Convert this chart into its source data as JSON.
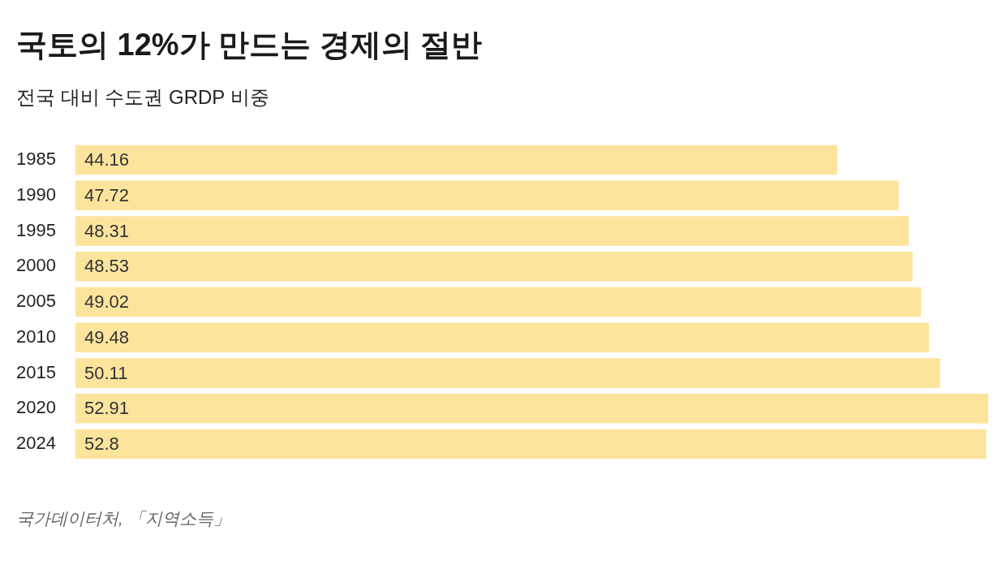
{
  "chart_data": {
    "type": "bar",
    "orientation": "horizontal",
    "title": "국토의 12%가 만드는 경제의 절반",
    "subtitle": "전국 대비 수도권 GRDP 비중",
    "categories": [
      "1985",
      "1990",
      "1995",
      "2000",
      "2005",
      "2010",
      "2015",
      "2020",
      "2024"
    ],
    "values": [
      44.16,
      47.72,
      48.31,
      48.53,
      49.02,
      49.48,
      50.11,
      52.91,
      52.8
    ],
    "value_labels": [
      "44.16",
      "47.72",
      "48.31",
      "48.53",
      "49.02",
      "49.48",
      "50.11",
      "52.91",
      "52.8"
    ],
    "color": "#fde49d",
    "legend": false,
    "tick_labels": "y",
    "annotations": [
      "국가데이터처, 「지역소득」"
    ]
  }
}
